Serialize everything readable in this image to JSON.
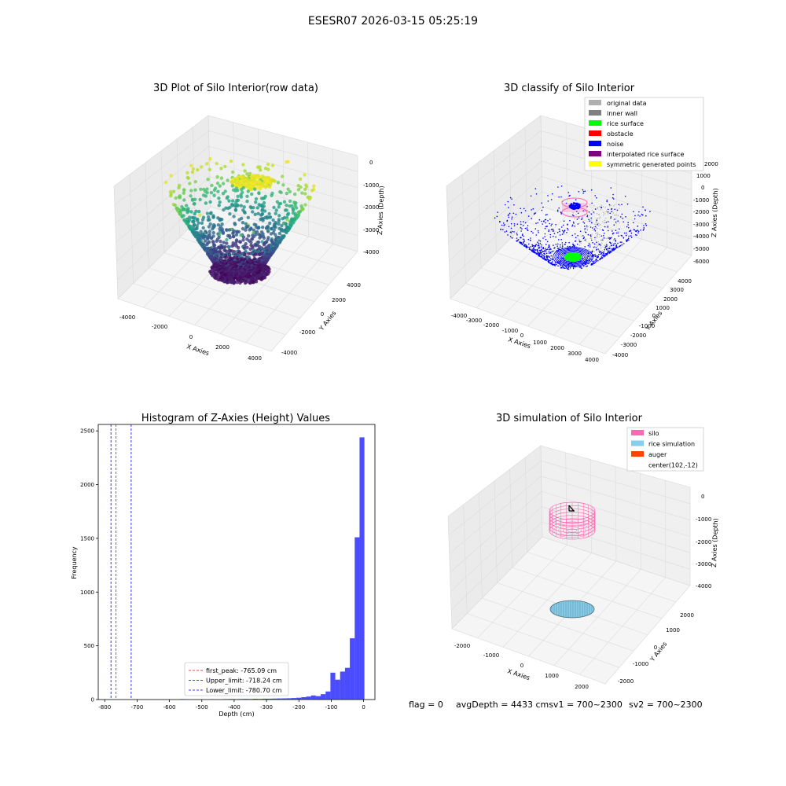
{
  "figure_title": "ESESR07 2026-03-15 05:25:19",
  "footer": {
    "flag": "flag = 0",
    "avg_depth": "avgDepth = 4433 cmsv1 = 700~2300",
    "sv2": "sv2 = 700~2300"
  },
  "colors": {
    "hist_bar": "#0000ff",
    "first_peak_line": "#ff0000",
    "limit_line": "#0000ff",
    "silo": "#ff69b4",
    "rice_simulation": "#87ceeb",
    "auger": "#ff4500",
    "original_data": "#b0b0b0",
    "inner_wall": "#808080",
    "rice_surface": "#00ff00",
    "obstacle": "#ff0000",
    "noise": "#0000ff",
    "interpolated": "#800080",
    "symmetric": "#ffff00"
  },
  "chart_data": [
    {
      "type": "scatter",
      "title": "3D Plot of Silo Interior(row data)",
      "xlabel": "X Axies",
      "ylabel": "Y Axies",
      "zlabel": "Z Axies (Depth)",
      "x_ticks": [
        "-4000",
        "-2000",
        "0",
        "2000",
        "4000"
      ],
      "y_ticks": [
        "-4000",
        "-2000",
        "0",
        "2000",
        "4000"
      ],
      "z_ticks": [
        "0",
        "-1000",
        "-2000",
        "-3000",
        "-4000"
      ],
      "xlim": [
        -4500,
        4500
      ],
      "ylim": [
        -4500,
        4500
      ],
      "zlim": [
        -4500,
        0
      ],
      "colormap": "viridis"
    },
    {
      "type": "scatter",
      "title": "3D classify of Silo Interior",
      "xlabel": "X Axies",
      "ylabel": "Y Axies",
      "zlabel": "Z Axies (Depth)",
      "x_ticks": [
        "-4000",
        "-3000",
        "-2000",
        "-1000",
        "0",
        "1000",
        "2000",
        "3000",
        "4000"
      ],
      "y_ticks": [
        "-4000",
        "-3000",
        "-2000",
        "-1000",
        "0",
        "1000",
        "2000",
        "3000",
        "4000"
      ],
      "z_ticks": [
        "2000",
        "1000",
        "0",
        "-1000",
        "-2000",
        "-3000",
        "-4000",
        "-5000",
        "-6000"
      ],
      "legend": [
        {
          "label": "original data",
          "color": "#b0b0b0"
        },
        {
          "label": "inner wall",
          "color": "#808080"
        },
        {
          "label": "rice surface",
          "color": "#00ff00"
        },
        {
          "label": "obstacle",
          "color": "#ff0000"
        },
        {
          "label": "noise",
          "color": "#0000ff"
        },
        {
          "label": "interpolated rice surface",
          "color": "#800080"
        },
        {
          "label": "symmetric generated points",
          "color": "#ffff00"
        }
      ],
      "legend_position": "top-right"
    },
    {
      "type": "bar",
      "title": "Histogram of Z-Axies (Height) Values",
      "xlabel": "Depth (cm)",
      "ylabel": "Frequency",
      "xlim": [
        -820,
        35
      ],
      "ylim": [
        0,
        2560
      ],
      "x_ticks": [
        -800,
        -700,
        -600,
        -500,
        -400,
        -300,
        -200,
        -100,
        0
      ],
      "y_ticks": [
        0,
        500,
        1000,
        1500,
        2000,
        2500
      ],
      "bin_width": 15,
      "bins": [
        {
          "x": -560,
          "count": 4
        },
        {
          "x": -545,
          "count": 2
        },
        {
          "x": -470,
          "count": 3
        },
        {
          "x": -425,
          "count": 4
        },
        {
          "x": -410,
          "count": 5
        },
        {
          "x": -395,
          "count": 4
        },
        {
          "x": -380,
          "count": 5
        },
        {
          "x": -365,
          "count": 6
        },
        {
          "x": -350,
          "count": 5
        },
        {
          "x": -335,
          "count": 7
        },
        {
          "x": -320,
          "count": 6
        },
        {
          "x": -305,
          "count": 8
        },
        {
          "x": -290,
          "count": 8
        },
        {
          "x": -275,
          "count": 9
        },
        {
          "x": -260,
          "count": 10
        },
        {
          "x": -245,
          "count": 11
        },
        {
          "x": -230,
          "count": 12
        },
        {
          "x": -215,
          "count": 14
        },
        {
          "x": -200,
          "count": 17
        },
        {
          "x": -185,
          "count": 22
        },
        {
          "x": -170,
          "count": 28
        },
        {
          "x": -155,
          "count": 38
        },
        {
          "x": -140,
          "count": 32
        },
        {
          "x": -125,
          "count": 50
        },
        {
          "x": -110,
          "count": 75
        },
        {
          "x": -95,
          "count": 250
        },
        {
          "x": -80,
          "count": 185
        },
        {
          "x": -65,
          "count": 260
        },
        {
          "x": -50,
          "count": 295
        },
        {
          "x": -35,
          "count": 570
        },
        {
          "x": -20,
          "count": 1510
        },
        {
          "x": -5,
          "count": 2440
        }
      ],
      "vlines": [
        {
          "x": -765.09,
          "label": "first_peak: -765.09 cm",
          "color": "#ff0000"
        },
        {
          "x": -718.24,
          "label": "Upper_limit: -718.24 cm",
          "color": "#0000ff"
        },
        {
          "x": -780.7,
          "label": "Lower_limit: -780.70 cm",
          "color": "#0000ff"
        }
      ],
      "legend_position": "lower-center"
    },
    {
      "type": "scatter",
      "title": "3D simulation of Silo Interior",
      "xlabel": "X Axies",
      "ylabel": "Y Axies",
      "zlabel": "Z Axies (Depth)",
      "x_ticks": [
        "-2000",
        "-1000",
        "0",
        "1000",
        "2000"
      ],
      "y_ticks": [
        "-2000",
        "-1000",
        "0",
        "1000",
        "2000"
      ],
      "z_ticks": [
        "0",
        "-1000",
        "-2000",
        "-3000",
        "-4000"
      ],
      "legend": [
        {
          "label": "silo",
          "color": "#ff69b4"
        },
        {
          "label": "rice simulation",
          "color": "#87ceeb"
        },
        {
          "label": "auger",
          "color": "#ff4500"
        },
        {
          "label": "center(102,-12)",
          "color": ""
        }
      ],
      "legend_position": "top-right"
    }
  ]
}
